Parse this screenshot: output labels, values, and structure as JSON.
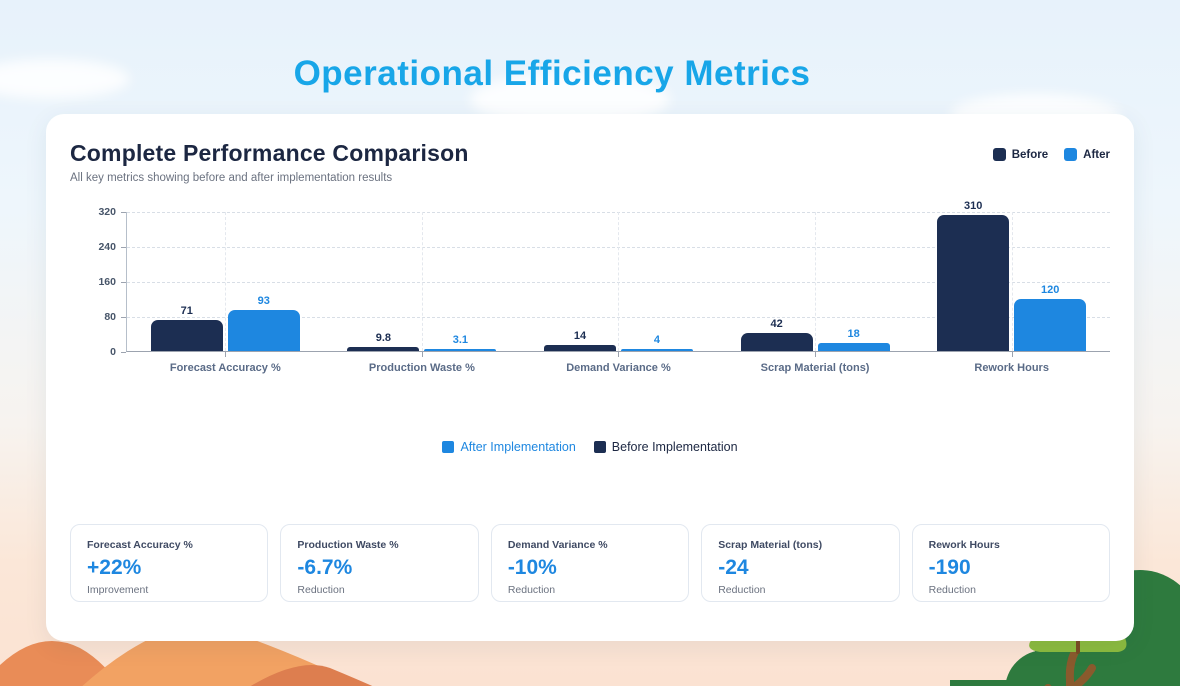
{
  "page": {
    "title": "Operational Efficiency Metrics"
  },
  "panel": {
    "heading": "Complete Performance Comparison",
    "subheading": "All key metrics showing before and after implementation results",
    "legend_top": [
      {
        "label": "Before",
        "color": "#1c2e52"
      },
      {
        "label": "After",
        "color": "#1e87e0"
      }
    ],
    "legend_bottom": [
      {
        "label": "After Implementation",
        "color": "#1e87e0",
        "text_color": "#1e87e0"
      },
      {
        "label": "Before Implementation",
        "color": "#1c2e52",
        "text_color": "#1c2742"
      }
    ]
  },
  "chart_data": {
    "type": "bar",
    "categories": [
      "Forecast Accuracy %",
      "Production Waste %",
      "Demand Variance %",
      "Scrap Material (tons)",
      "Rework Hours"
    ],
    "series": [
      {
        "name": "Before",
        "color": "#1c2e52",
        "values": [
          71,
          9.8,
          14,
          42,
          310
        ]
      },
      {
        "name": "After",
        "color": "#1e87e0",
        "values": [
          93,
          3.1,
          4,
          18,
          120
        ]
      }
    ],
    "value_labels": [
      [
        "71",
        "9.8",
        "14",
        "42",
        "310"
      ],
      [
        "93",
        "3.1",
        "4",
        "18",
        "120"
      ]
    ],
    "ylim": [
      0,
      320
    ],
    "yticks": [
      0,
      80,
      160,
      240,
      320
    ],
    "grid": true,
    "legend_position": "top-right"
  },
  "stat_cards": [
    {
      "label": "Forecast Accuracy %",
      "value": "+22%",
      "sub": "Improvement"
    },
    {
      "label": "Production Waste %",
      "value": "-6.7%",
      "sub": "Reduction"
    },
    {
      "label": "Demand Variance %",
      "value": "-10%",
      "sub": "Reduction"
    },
    {
      "label": "Scrap Material (tons)",
      "value": "-24",
      "sub": "Reduction"
    },
    {
      "label": "Rework Hours",
      "value": "-190",
      "sub": "Reduction"
    }
  ]
}
